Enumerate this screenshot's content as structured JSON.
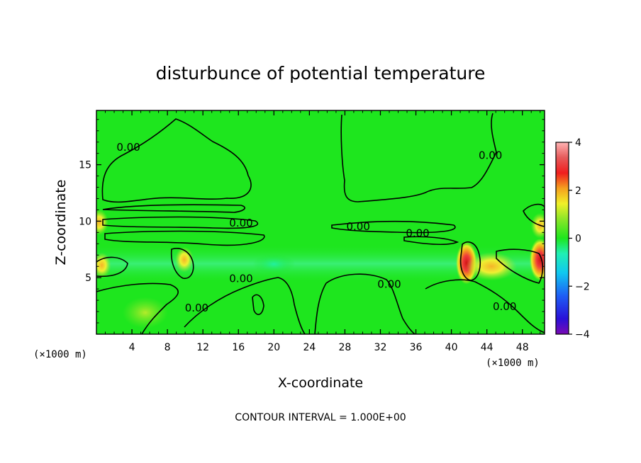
{
  "chart_data": {
    "type": "heatmap",
    "title": "disturbunce of potential temperature",
    "xlabel": "X-coordinate",
    "ylabel": "Z-coordinate",
    "x_unit": "(×1000 m)",
    "z_unit": "(×1000 m)",
    "xlim": [
      0,
      50.5
    ],
    "ylim": [
      0,
      19.8
    ],
    "x_ticks": [
      4,
      8,
      12,
      16,
      20,
      24,
      28,
      32,
      36,
      40,
      44,
      48
    ],
    "y_ticks": [
      5,
      10,
      15
    ],
    "colorbar": {
      "min": -4,
      "max": 4,
      "ticks": [
        4,
        2,
        0,
        -2,
        -4
      ]
    },
    "contour_interval_text": "CONTOUR INTERVAL = 1.000E+00",
    "contour_labels": [
      {
        "text": "0.00",
        "x": 3.6,
        "z": 16.5
      },
      {
        "text": "0.00",
        "x": 16.3,
        "z": 9.8
      },
      {
        "text": "0.00",
        "x": 29.5,
        "z": 9.5
      },
      {
        "text": "0.00",
        "x": 36.2,
        "z": 8.9
      },
      {
        "text": "0.00",
        "x": 44.4,
        "z": 15.8
      },
      {
        "text": "0.00",
        "x": 16.3,
        "z": 4.9
      },
      {
        "text": "0.00",
        "x": 33.0,
        "z": 4.4
      },
      {
        "text": "0.00",
        "x": 11.3,
        "z": 2.3
      },
      {
        "text": "0.00",
        "x": 46.0,
        "z": 2.4
      }
    ],
    "features": [
      {
        "kind": "warm",
        "x": 41.7,
        "z": 6.3,
        "peak": 4
      },
      {
        "kind": "warm",
        "x": 9.9,
        "z": 6.6,
        "peak": 3
      },
      {
        "kind": "warm",
        "x": 0.6,
        "z": 6.1,
        "peak": 2.5
      },
      {
        "kind": "warm",
        "x": 50.0,
        "z": 6.6,
        "peak": 3.5
      },
      {
        "kind": "warm",
        "x": 50.0,
        "z": 9.6,
        "peak": 2.5
      },
      {
        "kind": "warm",
        "x": 0.3,
        "z": 9.9,
        "peak": 3
      },
      {
        "kind": "warm",
        "x": 44.5,
        "z": 6.0,
        "peak": 1.5
      },
      {
        "kind": "warm",
        "x": 5.5,
        "z": 1.9,
        "peak": 1
      },
      {
        "kind": "cool",
        "x": 20.0,
        "z": 6.2,
        "peak": -0.8
      }
    ]
  }
}
